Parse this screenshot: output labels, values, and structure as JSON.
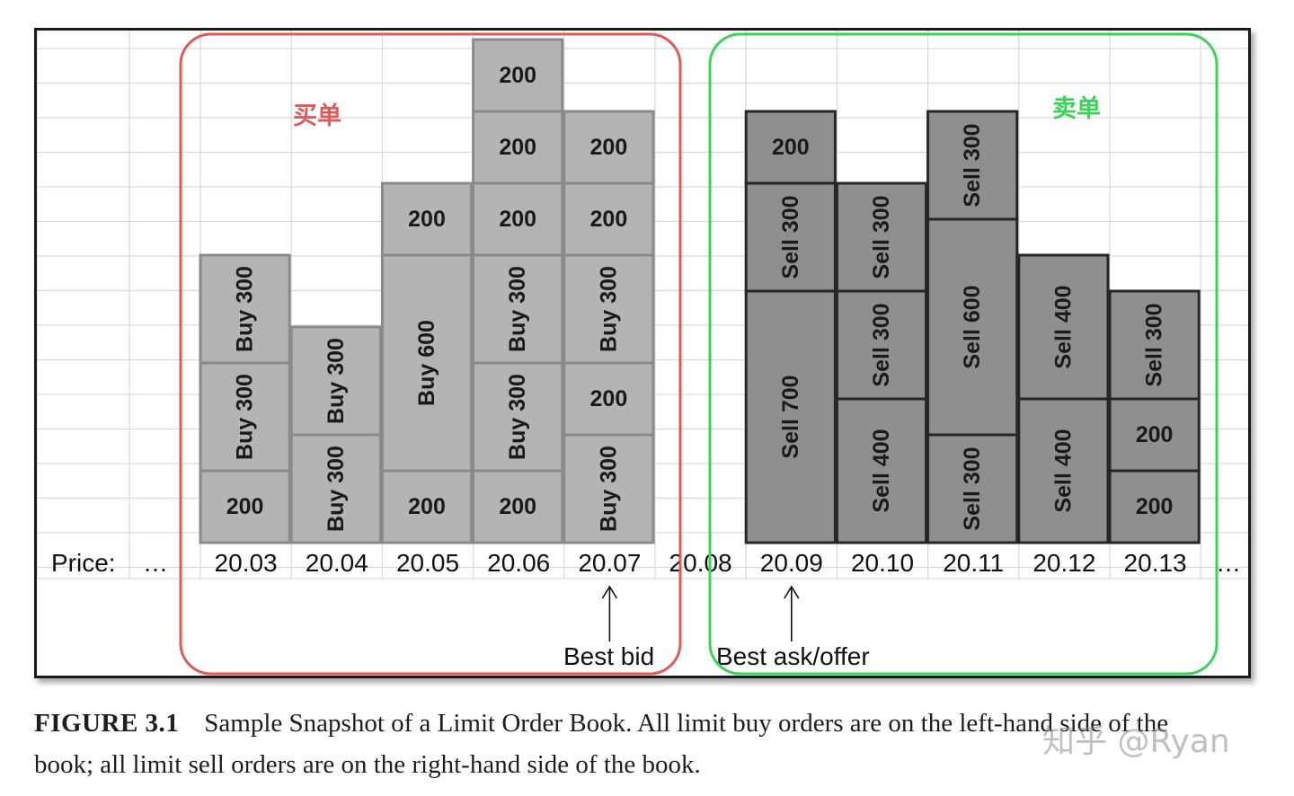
{
  "diagram": {
    "price_label": "Price:",
    "ellipsis": "…",
    "prices": [
      "20.03",
      "20.04",
      "20.05",
      "20.06",
      "20.07",
      "20.08",
      "20.09",
      "20.10",
      "20.11",
      "20.12",
      "20.13"
    ],
    "unit_shares": 100,
    "columns": [
      {
        "price": "20.03",
        "side": "buy",
        "orders": [
          {
            "label": "200",
            "shares": 200
          },
          {
            "label": "Buy 300",
            "shares": 300
          },
          {
            "label": "Buy 300",
            "shares": 300
          }
        ]
      },
      {
        "price": "20.04",
        "side": "buy",
        "orders": [
          {
            "label": "Buy 300",
            "shares": 300
          },
          {
            "label": "Buy 300",
            "shares": 300
          }
        ]
      },
      {
        "price": "20.05",
        "side": "buy",
        "orders": [
          {
            "label": "200",
            "shares": 200
          },
          {
            "label": "Buy 600",
            "shares": 600
          },
          {
            "label": "200",
            "shares": 200
          }
        ]
      },
      {
        "price": "20.06",
        "side": "buy",
        "orders": [
          {
            "label": "200",
            "shares": 200
          },
          {
            "label": "Buy 300",
            "shares": 300
          },
          {
            "label": "Buy 300",
            "shares": 300
          },
          {
            "label": "200",
            "shares": 200
          },
          {
            "label": "200",
            "shares": 200
          },
          {
            "label": "200",
            "shares": 200
          }
        ]
      },
      {
        "price": "20.07",
        "side": "buy",
        "orders": [
          {
            "label": "Buy 300",
            "shares": 300
          },
          {
            "label": "200",
            "shares": 200
          },
          {
            "label": "Buy 300",
            "shares": 300
          },
          {
            "label": "200",
            "shares": 200
          },
          {
            "label": "200",
            "shares": 200
          }
        ]
      },
      {
        "price": "20.08",
        "side": "none",
        "orders": []
      },
      {
        "price": "20.09",
        "side": "sell",
        "orders": [
          {
            "label": "Sell 700",
            "shares": 700
          },
          {
            "label": "Sell 300",
            "shares": 300
          },
          {
            "label": "200",
            "shares": 200
          }
        ]
      },
      {
        "price": "20.10",
        "side": "sell",
        "orders": [
          {
            "label": "Sell 400",
            "shares": 400
          },
          {
            "label": "Sell 300",
            "shares": 300
          },
          {
            "label": "Sell 300",
            "shares": 300
          }
        ]
      },
      {
        "price": "20.11",
        "side": "sell",
        "orders": [
          {
            "label": "Sell 300",
            "shares": 300
          },
          {
            "label": "Sell 600",
            "shares": 600
          },
          {
            "label": "Sell 300",
            "shares": 300
          }
        ]
      },
      {
        "price": "20.12",
        "side": "sell",
        "orders": [
          {
            "label": "Sell 400",
            "shares": 400
          },
          {
            "label": "Sell 400",
            "shares": 400
          }
        ]
      },
      {
        "price": "20.13",
        "side": "sell",
        "orders": [
          {
            "label": "200",
            "shares": 200
          },
          {
            "label": "200",
            "shares": 200
          },
          {
            "label": "Sell 300",
            "shares": 300
          }
        ]
      }
    ],
    "annotations": {
      "best_bid": {
        "label": "Best bid",
        "price": "20.07"
      },
      "best_ask": {
        "label": "Best ask/offer",
        "price": "20.09"
      }
    },
    "regions": {
      "buy": {
        "label": "买单",
        "color": "#e05a5a"
      },
      "sell": {
        "label": "卖单",
        "color": "#3cd35a"
      }
    },
    "colors": {
      "buy_fill": "#b4b4b4",
      "sell_fill": "#8f8f8f",
      "grid": "#d9d9d9"
    }
  },
  "caption": {
    "label": "FIGURE 3.1",
    "text": "Sample Snapshot of a Limit Order Book. All limit buy orders are on the left-hand side of the book; all limit sell orders are on the right-hand side of the book."
  },
  "watermark": "知乎 @Ryan"
}
